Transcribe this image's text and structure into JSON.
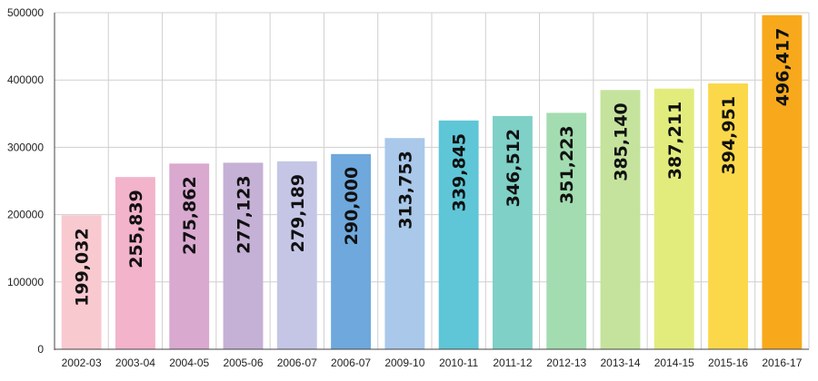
{
  "chart_data": {
    "type": "bar",
    "categories": [
      "2002-03",
      "2003-04",
      "2004-05",
      "2005-06",
      "2006-07",
      "2006-07",
      "2009-10",
      "2010-11",
      "2011-12",
      "2012-13",
      "2013-14",
      "2014-15",
      "2015-16",
      "2016-17"
    ],
    "values": [
      199032,
      255839,
      275862,
      277123,
      279189,
      290000,
      313753,
      339845,
      346512,
      351223,
      385140,
      387211,
      394951,
      496417
    ],
    "value_labels": [
      "199,032",
      "255,839",
      "275,862",
      "277,123",
      "279,189",
      "290,000",
      "313,753",
      "339,845",
      "346,512",
      "351,223",
      "385,140",
      "387,211",
      "394,951",
      "496,417"
    ],
    "colors": [
      "#f9c9d0",
      "#f2b3cb",
      "#d9a9d0",
      "#c5b0d6",
      "#c5c6e6",
      "#6fa8dc",
      "#a9c8ea",
      "#5ec6d6",
      "#7fd0c6",
      "#a3dcb0",
      "#c5e39d",
      "#e2ec7d",
      "#fbd84a",
      "#f8a91b"
    ],
    "yticks": [
      "0",
      "100000",
      "200000",
      "300000",
      "400000",
      "500000"
    ],
    "ylim": [
      0,
      500000
    ],
    "grid": true,
    "title": "",
    "xlabel": "",
    "ylabel": ""
  }
}
